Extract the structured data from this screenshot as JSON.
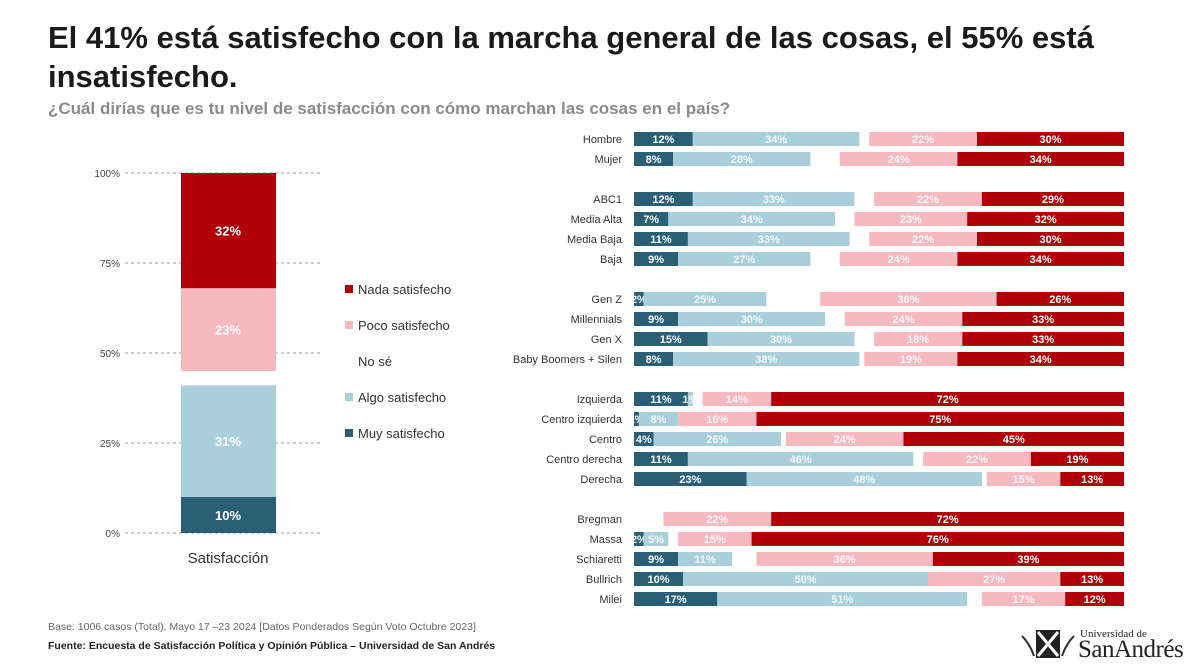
{
  "title": "El 41% está satisfecho con la marcha general de las cosas, el 55% está insatisfecho.",
  "subtitle": "¿Cuál dirías que es tu nivel de satisfacción con cómo marchan las cosas en el país?",
  "footer": {
    "base": "Base: 1006 casos (Total), Mayo 17 –23 2024 [Datos Ponderados Según Voto Octubre 2023]",
    "source": "Fuente: Encuesta de Satisfacción Política y Opinión Pública – Universidad de San Andrés"
  },
  "logo": {
    "line1": "Universidad de",
    "line2": "SanAndrés"
  },
  "colors": {
    "muy": "#2b5f75",
    "algo": "#a9cfdd",
    "poco": "#f7b9c0",
    "nada": "#b10009"
  },
  "chart_data": [
    {
      "type": "bar",
      "stacked": true,
      "categories": [
        "Satisfacción"
      ],
      "yticks": [
        "0%",
        "25%",
        "50%",
        "75%",
        "100%"
      ],
      "ylim": [
        0,
        100
      ],
      "grid": "dashed",
      "legend_placement": "right",
      "legend": [
        "Nada satisfecho",
        "Poco satisfecho",
        "No sé",
        "Algo satisfecho",
        "Muy satisfecho"
      ],
      "series": [
        {
          "name": "Muy satisfecho",
          "values": [
            10
          ]
        },
        {
          "name": "Algo satisfecho",
          "values": [
            31
          ]
        },
        {
          "name": "Poco satisfecho",
          "values": [
            23
          ]
        },
        {
          "name": "Nada satisfecho",
          "values": [
            32
          ]
        }
      ]
    },
    {
      "type": "bar",
      "orientation": "horizontal",
      "stacked": true,
      "rows": [
        {
          "group": 0,
          "label": "Hombre",
          "values": [
            12,
            34,
            22,
            30
          ]
        },
        {
          "group": 0,
          "label": "Mujer",
          "values": [
            8,
            28,
            24,
            34
          ]
        },
        {
          "group": 1,
          "label": "ABC1",
          "values": [
            12,
            33,
            22,
            29
          ]
        },
        {
          "group": 1,
          "label": "Media Alta",
          "values": [
            7,
            34,
            23,
            32
          ]
        },
        {
          "group": 1,
          "label": "Media Baja",
          "values": [
            11,
            33,
            22,
            30
          ]
        },
        {
          "group": 1,
          "label": "Baja",
          "values": [
            9,
            27,
            24,
            34
          ]
        },
        {
          "group": 2,
          "label": "Gen Z",
          "values": [
            2,
            25,
            36,
            26
          ]
        },
        {
          "group": 2,
          "label": "Millennials",
          "values": [
            9,
            30,
            24,
            33
          ]
        },
        {
          "group": 2,
          "label": "Gen X",
          "values": [
            15,
            30,
            18,
            33
          ]
        },
        {
          "group": 2,
          "label": "Baby Boomers + Silen",
          "values": [
            8,
            38,
            19,
            34
          ]
        },
        {
          "group": 3,
          "label": "Izquierda",
          "values": [
            11,
            1,
            14,
            72
          ]
        },
        {
          "group": 3,
          "label": "Centro izquierda",
          "values": [
            1,
            8,
            16,
            75
          ]
        },
        {
          "group": 3,
          "label": "Centro",
          "values": [
            4,
            26,
            24,
            45
          ]
        },
        {
          "group": 3,
          "label": "Centro derecha",
          "values": [
            11,
            46,
            22,
            19
          ]
        },
        {
          "group": 3,
          "label": "Derecha",
          "values": [
            23,
            48,
            15,
            13
          ]
        },
        {
          "group": 4,
          "label": "Bregman",
          "values": [
            0,
            0,
            22,
            72
          ]
        },
        {
          "group": 4,
          "label": "Massa",
          "values": [
            2,
            5,
            15,
            76
          ]
        },
        {
          "group": 4,
          "label": "Schiaretti",
          "values": [
            9,
            11,
            36,
            39
          ]
        },
        {
          "group": 4,
          "label": "Bullrich",
          "values": [
            10,
            50,
            27,
            13
          ]
        },
        {
          "group": 4,
          "label": "Milei",
          "values": [
            17,
            51,
            17,
            12
          ]
        }
      ]
    }
  ]
}
